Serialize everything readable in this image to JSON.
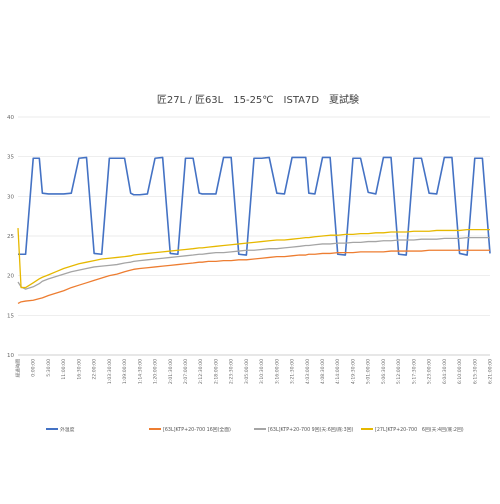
{
  "chart_data": {
    "type": "line",
    "title": "匠27L / 匠63L　15-25℃　ISTA7D　夏試験",
    "xlabel": "",
    "ylabel": "",
    "ylim": [
      10,
      40
    ],
    "yticks": [
      10,
      15,
      20,
      25,
      30,
      35,
      40
    ],
    "grid": true,
    "legend_position": "bottom",
    "x_tick_labels": [
      "経過時間",
      "0:00:00",
      "5:30:00",
      "11:00:00",
      "16:30:00",
      "22:00:00",
      "1:03:30:00",
      "1:09:00:00",
      "1:14:30:00",
      "1:20:00:00",
      "2:01:30:00",
      "2:07:00:00",
      "2:12:30:00",
      "2:18:00:00",
      "2:23:30:00",
      "3:05:00:00",
      "3:10:30:00",
      "3:16:00:00",
      "3:21:30:00",
      "4:03:00:00",
      "4:08:30:00",
      "4:14:00:00",
      "4:19:30:00",
      "5:01:00:00",
      "5:06:30:00",
      "5:12:00:00",
      "5:17:30:00",
      "5:23:00:00",
      "6:04:30:00",
      "6:10:00:00",
      "6:15:30:00",
      "6:21:00:00"
    ],
    "x": [
      0,
      0.2,
      0.5,
      1,
      1.4,
      1.6,
      2,
      2.5,
      3,
      3.5,
      4,
      4.5,
      5,
      5.5,
      6,
      6.5,
      7,
      7.4,
      7.6,
      8,
      8.5,
      9,
      9.5,
      10,
      10.5,
      11,
      11.5,
      11.9,
      12.1,
      12.5,
      13,
      13.5,
      14,
      14.5,
      15,
      15.5,
      16,
      16.5,
      17,
      17.5,
      18,
      18.5,
      18.9,
      19.1,
      19.5,
      20,
      20.5,
      21,
      21.5,
      22,
      22.5,
      23,
      23.5,
      24,
      24.5,
      25,
      25.5,
      26,
      26.5,
      27,
      27.5,
      28,
      28.5,
      29,
      29.5,
      30,
      30.5,
      31
    ],
    "series": [
      {
        "name": "外温度",
        "color": "#4472C4",
        "values": [
          22.7,
          22.7,
          22.7,
          34.8,
          34.8,
          30.4,
          30.3,
          30.3,
          30.3,
          30.4,
          34.8,
          34.9,
          22.8,
          22.7,
          34.8,
          34.8,
          34.8,
          30.4,
          30.2,
          30.2,
          30.3,
          34.8,
          34.9,
          22.8,
          22.7,
          34.8,
          34.8,
          30.4,
          30.3,
          30.3,
          30.3,
          34.9,
          34.9,
          22.7,
          22.6,
          34.8,
          34.8,
          34.9,
          30.4,
          30.3,
          34.9,
          34.9,
          34.9,
          30.4,
          30.3,
          34.9,
          34.9,
          22.7,
          22.6,
          34.8,
          34.8,
          30.5,
          30.3,
          34.9,
          34.9,
          22.7,
          22.6,
          34.8,
          34.8,
          30.4,
          30.3,
          34.9,
          34.9,
          22.8,
          22.6,
          34.8,
          34.8,
          22.8
        ]
      },
      {
        "name": "[63L]KTP+20-700 16回(全面)",
        "color": "#ED7D31",
        "values": [
          16.5,
          16.7,
          16.8,
          16.9,
          17.1,
          17.2,
          17.5,
          17.8,
          18.1,
          18.5,
          18.8,
          19.1,
          19.4,
          19.7,
          20,
          20.2,
          20.5,
          20.7,
          20.8,
          20.9,
          21,
          21.1,
          21.2,
          21.3,
          21.4,
          21.5,
          21.6,
          21.7,
          21.7,
          21.8,
          21.8,
          21.9,
          21.9,
          22,
          22,
          22.1,
          22.2,
          22.3,
          22.4,
          22.4,
          22.5,
          22.6,
          22.6,
          22.7,
          22.7,
          22.8,
          22.8,
          22.9,
          22.9,
          22.9,
          23,
          23,
          23,
          23,
          23.1,
          23.1,
          23.1,
          23.1,
          23.1,
          23.2,
          23.2,
          23.2,
          23.2,
          23.2,
          23.2,
          23.2,
          23.2,
          23.2
        ]
      },
      {
        "name": "[63L]KTP+20-700 9回(天:6回/底:3回)",
        "color": "#A5A5A5",
        "values": [
          19.2,
          18.6,
          18.3,
          18.6,
          19,
          19.3,
          19.6,
          19.9,
          20.2,
          20.5,
          20.7,
          20.9,
          21.1,
          21.2,
          21.3,
          21.4,
          21.6,
          21.7,
          21.8,
          21.9,
          22,
          22.1,
          22.2,
          22.3,
          22.4,
          22.5,
          22.6,
          22.7,
          22.7,
          22.8,
          22.9,
          22.9,
          23,
          23.1,
          23.2,
          23.2,
          23.3,
          23.4,
          23.4,
          23.5,
          23.6,
          23.7,
          23.8,
          23.8,
          23.9,
          24,
          24,
          24.1,
          24.1,
          24.2,
          24.2,
          24.3,
          24.3,
          24.4,
          24.4,
          24.5,
          24.5,
          24.5,
          24.6,
          24.6,
          24.6,
          24.7,
          24.7,
          24.7,
          24.8,
          24.8,
          24.8,
          24.8
        ]
      },
      {
        "name": "[27L]KTP+20-700　6回(天:4回/底:2回)",
        "color": "#E6B800",
        "values": [
          26,
          18.5,
          18.5,
          19.1,
          19.6,
          19.8,
          20.1,
          20.5,
          20.9,
          21.2,
          21.5,
          21.7,
          21.9,
          22.1,
          22.2,
          22.3,
          22.4,
          22.5,
          22.6,
          22.7,
          22.8,
          22.9,
          23,
          23.1,
          23.2,
          23.3,
          23.4,
          23.5,
          23.5,
          23.6,
          23.7,
          23.8,
          23.9,
          24,
          24.1,
          24.2,
          24.3,
          24.4,
          24.5,
          24.5,
          24.6,
          24.7,
          24.8,
          24.8,
          24.9,
          25,
          25.1,
          25.1,
          25.2,
          25.2,
          25.3,
          25.3,
          25.4,
          25.4,
          25.5,
          25.5,
          25.5,
          25.6,
          25.6,
          25.6,
          25.7,
          25.7,
          25.7,
          25.7,
          25.8,
          25.8,
          25.8,
          25.8
        ]
      }
    ]
  }
}
